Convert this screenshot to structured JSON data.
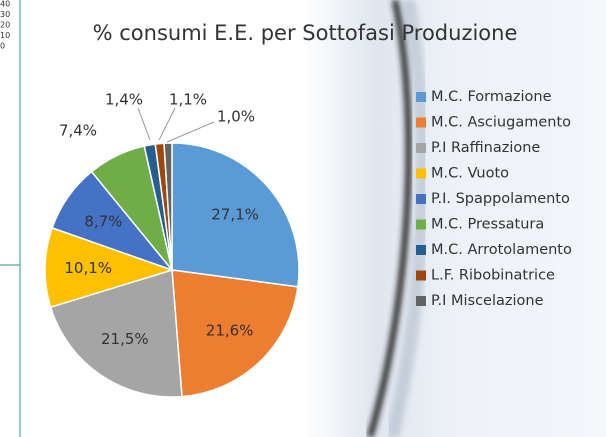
{
  "chart_data": {
    "type": "pie",
    "title": "% consumi E.E. per Sottofasi Produzione",
    "categories": [
      "M.C. Formazione",
      "M.C. Asciugamento",
      "P.I Raffinazione",
      "M.C. Vuoto",
      "P.I. Spappolamento",
      "M.C. Pressatura",
      "M.C. Arrotolamento",
      "L.F. Ribobinatrice",
      "P.I Miscelazione"
    ],
    "values": [
      27.1,
      21.6,
      21.5,
      10.1,
      8.7,
      7.4,
      1.4,
      1.1,
      1.0
    ],
    "value_labels": [
      "27,1%",
      "21,6%",
      "21,5%",
      "10,1%",
      "8,7%",
      "7,4%",
      "1,4%",
      "1,1%",
      "1,0%"
    ],
    "colors": [
      "#5b9bd5",
      "#ed7d31",
      "#a5a5a5",
      "#ffc000",
      "#4472c4",
      "#70ad47",
      "#255e91",
      "#9e480e",
      "#636363"
    ],
    "legend": "right"
  },
  "background_labels": [
    "40",
    "30",
    "20",
    "10",
    "0"
  ]
}
